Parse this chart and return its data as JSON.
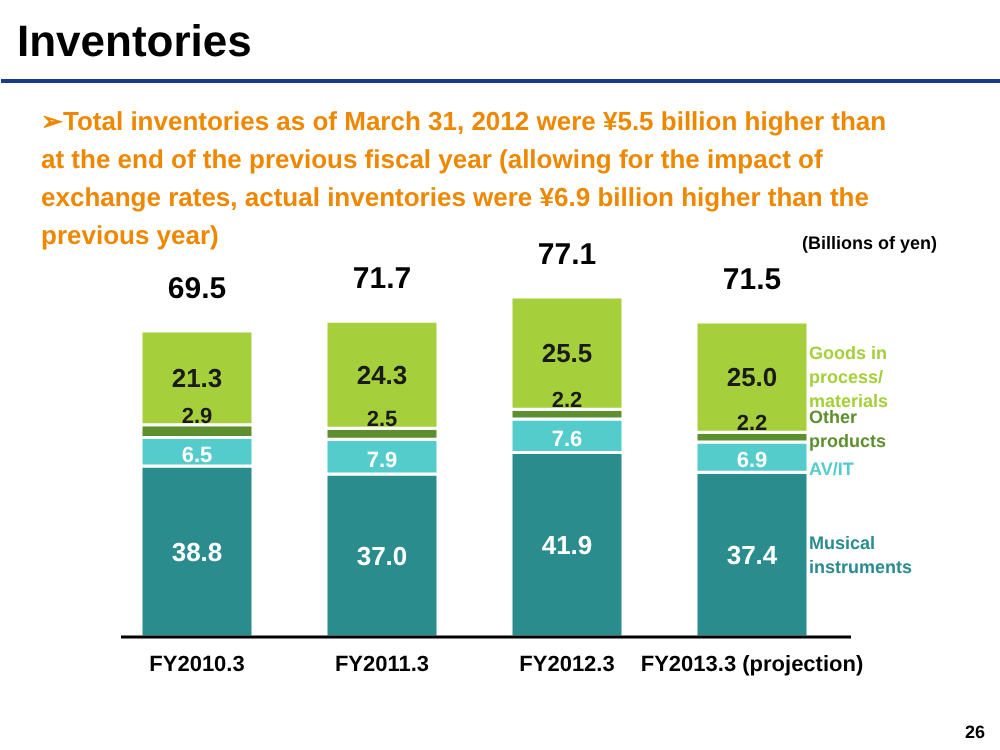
{
  "chart_data": {
    "type": "bar",
    "stacked": true,
    "title": "Inventories",
    "subtitle": "➢Total inventories as of March 31, 2012 were ¥5.5 billion higher than at the end of the previous fiscal year (allowing for the impact of exchange rates, actual inventories were ¥6.9 billion higher than the previous year)",
    "ylabel": "(Billions of yen)",
    "categories": [
      "FY2010.3",
      "FY2011.3",
      "FY2012.3",
      "FY2013.3 (projection)"
    ],
    "series": [
      {
        "name": "Musical instruments",
        "color": "#2a8c8c",
        "values": [
          38.8,
          37.0,
          41.9,
          37.4
        ],
        "value_labels": [
          "38.8",
          "37.0",
          "41.9",
          "37.4"
        ]
      },
      {
        "name": "AV/IT",
        "color": "#55cccc",
        "values": [
          6.5,
          7.9,
          7.6,
          6.9
        ],
        "value_labels": [
          "6.5",
          "7.9",
          "7.6",
          "6.9"
        ]
      },
      {
        "name": "Other products",
        "color": "#5e8f2e",
        "values": [
          2.9,
          2.5,
          2.2,
          2.2
        ],
        "value_labels": [
          "2.9",
          "2.5",
          "2.2",
          "2.2"
        ]
      },
      {
        "name": "Goods in process/ materials",
        "color": "#a6cf3c",
        "values": [
          21.3,
          24.3,
          25.5,
          25.0
        ],
        "value_labels": [
          "21.3",
          "24.3",
          "25.5",
          "25.0"
        ]
      }
    ],
    "totals": [
      "69.5",
      "71.7",
      "77.1",
      "71.5"
    ],
    "legend": "right",
    "annotations": [
      "26"
    ]
  }
}
